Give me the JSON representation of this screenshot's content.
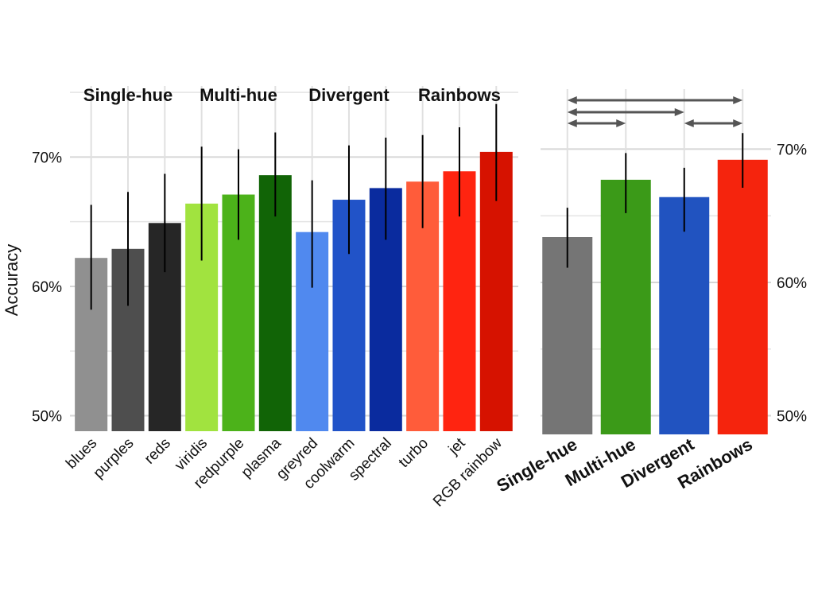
{
  "chart_data": [
    {
      "type": "bar",
      "ylabel": "Accuracy",
      "ylim": [
        48.8,
        75.5
      ],
      "yticks": [
        50,
        60,
        70
      ],
      "ytick_labels": [
        "50%",
        "60%",
        "70%"
      ],
      "grid": true,
      "groups": [
        {
          "label": "Single-hue",
          "categories": [
            "blues",
            "purples",
            "reds"
          ]
        },
        {
          "label": "Multi-hue",
          "categories": [
            "viridis",
            "redpurple",
            "plasma"
          ]
        },
        {
          "label": "Divergent",
          "categories": [
            "greyred",
            "coolwarm",
            "spectral"
          ]
        },
        {
          "label": "Rainbows",
          "categories": [
            "turbo",
            "jet",
            "RGB rainbow"
          ]
        }
      ],
      "categories": [
        "blues",
        "purples",
        "reds",
        "viridis",
        "redpurple",
        "plasma",
        "greyred",
        "coolwarm",
        "spectral",
        "turbo",
        "jet",
        "RGB rainbow"
      ],
      "values": [
        62.2,
        62.9,
        64.9,
        66.4,
        67.1,
        68.6,
        64.2,
        66.7,
        67.6,
        68.1,
        68.9,
        70.4
      ],
      "error_low": [
        58.2,
        58.5,
        61.1,
        62.0,
        63.6,
        65.4,
        59.9,
        62.5,
        63.6,
        64.5,
        65.4,
        66.6
      ],
      "error_high": [
        66.3,
        67.3,
        68.7,
        70.8,
        70.6,
        71.9,
        68.2,
        70.9,
        71.5,
        71.7,
        72.3,
        74.1
      ],
      "colors": [
        "#909090",
        "#4e4e4e",
        "#262626",
        "#a1e33f",
        "#4cb21a",
        "#116406",
        "#5089ef",
        "#2153c8",
        "#0a2b9e",
        "#ff5c3a",
        "#ff2410",
        "#d61200"
      ]
    },
    {
      "type": "bar",
      "ylim": [
        48.6,
        74.5
      ],
      "yticks": [
        50,
        60,
        70
      ],
      "ytick_labels": [
        "50%",
        "60%",
        "70%"
      ],
      "grid": true,
      "categories": [
        "Single-hue",
        "Multi-hue",
        "Divergent",
        "Rainbows"
      ],
      "values": [
        63.4,
        67.7,
        66.4,
        69.2
      ],
      "error_low": [
        61.1,
        65.2,
        63.8,
        67.1
      ],
      "error_high": [
        65.6,
        69.7,
        68.6,
        71.2
      ],
      "colors": [
        "#757575",
        "#3b9a18",
        "#2153c0",
        "#f5240d"
      ],
      "comparisons": [
        [
          0,
          3
        ],
        [
          0,
          2
        ],
        [
          0,
          1
        ],
        [
          2,
          3
        ]
      ]
    }
  ]
}
